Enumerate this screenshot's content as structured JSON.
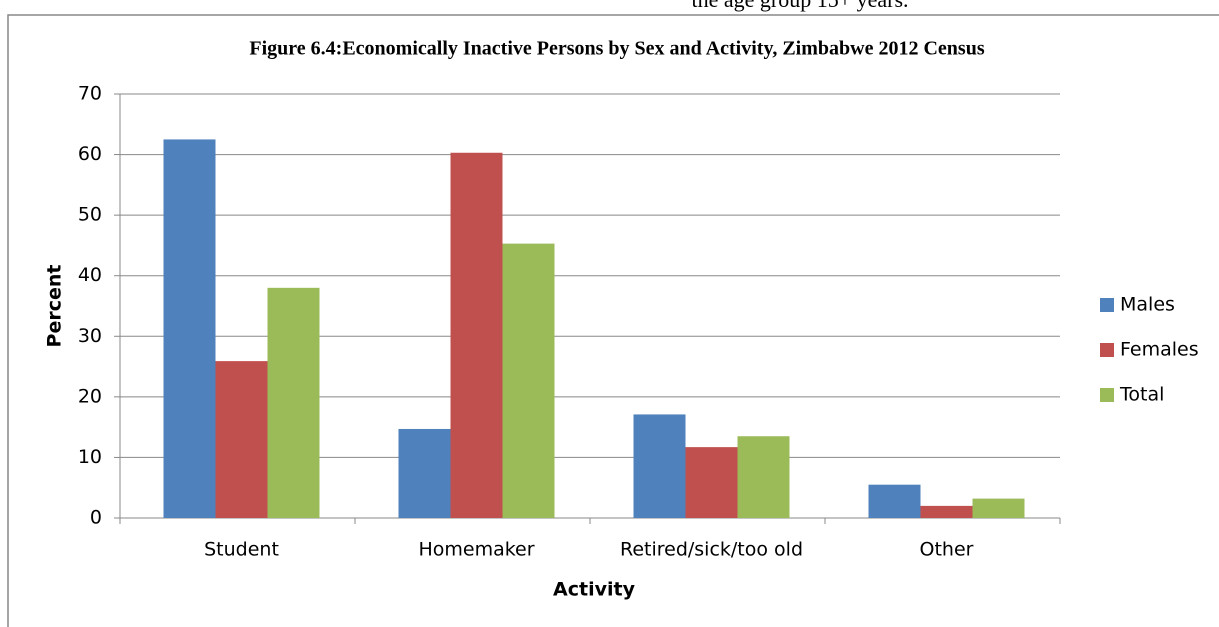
{
  "top_text": "the age group 15+ years.",
  "chart_data": {
    "type": "bar",
    "title": "Figure 6.4:Economically Inactive Persons by Sex and Activity, Zimbabwe 2012 Census",
    "xlabel": "Activity",
    "ylabel": "Percent",
    "categories": [
      "Student",
      "Homemaker",
      "Retired/sick/too old",
      "Other"
    ],
    "series": [
      {
        "name": "Males",
        "color": "#4f81bd",
        "values": [
          62.5,
          14.7,
          17.1,
          5.5
        ]
      },
      {
        "name": "Females",
        "color": "#c0504d",
        "values": [
          25.9,
          60.3,
          11.7,
          2.0
        ]
      },
      {
        "name": "Total",
        "color": "#9bbb59",
        "values": [
          38.0,
          45.3,
          13.5,
          3.2
        ]
      }
    ],
    "ylim": [
      0,
      70
    ],
    "yticks": [
      0,
      10,
      20,
      30,
      40,
      50,
      60,
      70
    ],
    "grid": true,
    "legend": "right"
  }
}
